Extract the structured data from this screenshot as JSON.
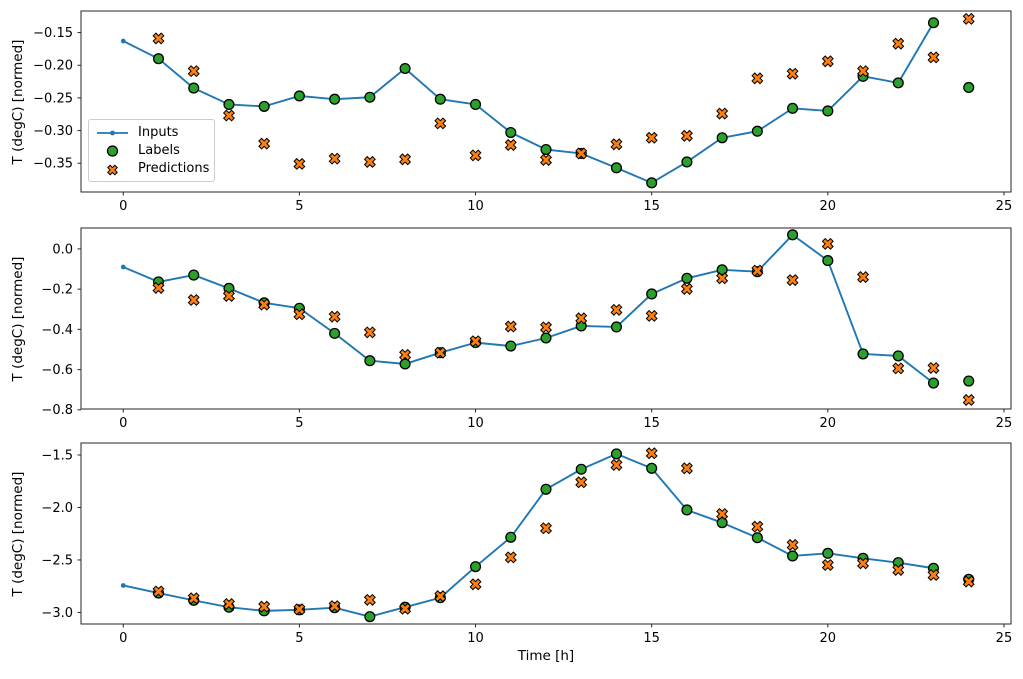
{
  "figure": {
    "xlabel": "Time [h]",
    "ylabel": "T (degC) [normed]",
    "colors": {
      "inputs_line": "#1f77b4",
      "labels_marker": "#2ca02c",
      "predictions_marker": "#ff7f0e",
      "marker_edge": "#000000",
      "axis": "#262626",
      "legend_border": "#cccccc"
    },
    "legend": {
      "items": [
        {
          "label": "Inputs",
          "marker": "line-with-dot"
        },
        {
          "label": "Labels",
          "marker": "circle"
        },
        {
          "label": "Predictions",
          "marker": "X"
        }
      ]
    }
  },
  "chart_data": [
    {
      "type": "line",
      "title": "",
      "xlabel": "",
      "ylabel": "T (degC) [normed]",
      "xlim": [
        -1.2,
        25.2
      ],
      "ylim": [
        -0.394,
        -0.117
      ],
      "xticks": [
        0,
        5,
        10,
        15,
        20,
        25
      ],
      "xtick_labels": [
        "0",
        "5",
        "10",
        "15",
        "20",
        "25"
      ],
      "yticks": [
        -0.15,
        -0.2,
        -0.25,
        -0.3,
        -0.35
      ],
      "ytick_labels": [
        "−0.15",
        "−0.20",
        "−0.25",
        "−0.30",
        "−0.35"
      ],
      "legend_visible": true,
      "series": [
        {
          "name": "Inputs",
          "type": "line",
          "marker": "point",
          "x": [
            0,
            1,
            2,
            3,
            4,
            5,
            6,
            7,
            8,
            9,
            10,
            11,
            12,
            13,
            14,
            15,
            16,
            17,
            18,
            19,
            20,
            21,
            22,
            23
          ],
          "y": [
            -0.163,
            -0.19,
            -0.235,
            -0.26,
            -0.263,
            -0.247,
            -0.252,
            -0.249,
            -0.205,
            -0.252,
            -0.26,
            -0.303,
            -0.329,
            -0.335,
            -0.357,
            -0.38,
            -0.348,
            -0.311,
            -0.301,
            -0.266,
            -0.27,
            -0.217,
            -0.227,
            -0.135
          ]
        },
        {
          "name": "Labels",
          "type": "scatter",
          "marker": "circle",
          "x": [
            1,
            2,
            3,
            4,
            5,
            6,
            7,
            8,
            9,
            10,
            11,
            12,
            13,
            14,
            15,
            16,
            17,
            18,
            19,
            20,
            21,
            22,
            23,
            24
          ],
          "y": [
            -0.19,
            -0.235,
            -0.26,
            -0.263,
            -0.247,
            -0.252,
            -0.249,
            -0.205,
            -0.252,
            -0.26,
            -0.303,
            -0.329,
            -0.335,
            -0.357,
            -0.38,
            -0.348,
            -0.311,
            -0.301,
            -0.266,
            -0.27,
            -0.217,
            -0.227,
            -0.135,
            -0.234
          ]
        },
        {
          "name": "Predictions",
          "type": "scatter",
          "marker": "X",
          "x": [
            1,
            2,
            3,
            4,
            5,
            6,
            7,
            8,
            9,
            10,
            11,
            12,
            13,
            14,
            15,
            16,
            17,
            18,
            19,
            20,
            21,
            22,
            23,
            24
          ],
          "y": [
            -0.159,
            -0.209,
            -0.277,
            -0.32,
            -0.351,
            -0.343,
            -0.348,
            -0.344,
            -0.289,
            -0.338,
            -0.322,
            -0.345,
            -0.335,
            -0.321,
            -0.311,
            -0.308,
            -0.274,
            -0.22,
            -0.213,
            -0.194,
            -0.209,
            -0.167,
            -0.188,
            -0.129
          ]
        }
      ]
    },
    {
      "type": "line",
      "title": "",
      "xlabel": "",
      "ylabel": "T (degC) [normed]",
      "xlim": [
        -1.2,
        25.2
      ],
      "ylim": [
        -0.796,
        0.104
      ],
      "xticks": [
        0,
        5,
        10,
        15,
        20,
        25
      ],
      "xtick_labels": [
        "0",
        "5",
        "10",
        "15",
        "20",
        "25"
      ],
      "yticks": [
        0.0,
        -0.2,
        -0.4,
        -0.6,
        -0.8
      ],
      "ytick_labels": [
        "0.0",
        "−0.2",
        "−0.4",
        "−0.6",
        "−0.8"
      ],
      "legend_visible": false,
      "series": [
        {
          "name": "Inputs",
          "type": "line",
          "marker": "point",
          "x": [
            0,
            1,
            2,
            3,
            4,
            5,
            6,
            7,
            8,
            9,
            10,
            11,
            12,
            13,
            14,
            15,
            16,
            17,
            18,
            19,
            20,
            21,
            22,
            23
          ],
          "y": [
            -0.09,
            -0.164,
            -0.13,
            -0.196,
            -0.268,
            -0.295,
            -0.42,
            -0.556,
            -0.572,
            -0.516,
            -0.466,
            -0.483,
            -0.443,
            -0.383,
            -0.388,
            -0.224,
            -0.146,
            -0.104,
            -0.113,
            0.07,
            -0.058,
            -0.522,
            -0.532,
            -0.667
          ]
        },
        {
          "name": "Labels",
          "type": "scatter",
          "marker": "circle",
          "x": [
            1,
            2,
            3,
            4,
            5,
            6,
            7,
            8,
            9,
            10,
            11,
            12,
            13,
            14,
            15,
            16,
            17,
            18,
            19,
            20,
            21,
            22,
            23,
            24
          ],
          "y": [
            -0.164,
            -0.13,
            -0.196,
            -0.268,
            -0.295,
            -0.42,
            -0.556,
            -0.572,
            -0.516,
            -0.466,
            -0.483,
            -0.443,
            -0.383,
            -0.388,
            -0.224,
            -0.146,
            -0.104,
            -0.113,
            0.07,
            -0.058,
            -0.522,
            -0.532,
            -0.667,
            -0.657
          ]
        },
        {
          "name": "Predictions",
          "type": "scatter",
          "marker": "X",
          "x": [
            1,
            2,
            3,
            4,
            5,
            6,
            7,
            8,
            9,
            10,
            11,
            12,
            13,
            14,
            15,
            16,
            17,
            18,
            19,
            20,
            21,
            22,
            23,
            24
          ],
          "y": [
            -0.194,
            -0.254,
            -0.234,
            -0.277,
            -0.325,
            -0.337,
            -0.415,
            -0.527,
            -0.516,
            -0.459,
            -0.386,
            -0.39,
            -0.345,
            -0.303,
            -0.333,
            -0.199,
            -0.146,
            -0.108,
            -0.155,
            0.025,
            -0.14,
            -0.594,
            -0.592,
            -0.751
          ]
        }
      ]
    },
    {
      "type": "line",
      "title": "",
      "xlabel": "Time [h]",
      "ylabel": "T (degC) [normed]",
      "xlim": [
        -1.2,
        25.2
      ],
      "ylim": [
        -3.11,
        -1.386
      ],
      "xticks": [
        0,
        5,
        10,
        15,
        20,
        25
      ],
      "xtick_labels": [
        "0",
        "5",
        "10",
        "15",
        "20",
        "25"
      ],
      "yticks": [
        -1.5,
        -2.0,
        -2.5,
        -3.0
      ],
      "ytick_labels": [
        "−1.5",
        "−2.0",
        "−2.5",
        "−3.0"
      ],
      "legend_visible": false,
      "series": [
        {
          "name": "Inputs",
          "type": "line",
          "marker": "point",
          "x": [
            0,
            1,
            2,
            3,
            4,
            5,
            6,
            7,
            8,
            9,
            10,
            11,
            12,
            13,
            14,
            15,
            16,
            17,
            18,
            19,
            20,
            21,
            22,
            23
          ],
          "y": [
            -2.743,
            -2.815,
            -2.885,
            -2.95,
            -2.985,
            -2.975,
            -2.955,
            -3.04,
            -2.95,
            -2.86,
            -2.564,
            -2.284,
            -1.827,
            -1.636,
            -1.49,
            -1.627,
            -2.024,
            -2.145,
            -2.288,
            -2.462,
            -2.437,
            -2.484,
            -2.526,
            -2.579
          ]
        },
        {
          "name": "Labels",
          "type": "scatter",
          "marker": "circle",
          "x": [
            1,
            2,
            3,
            4,
            5,
            6,
            7,
            8,
            9,
            10,
            11,
            12,
            13,
            14,
            15,
            16,
            17,
            18,
            19,
            20,
            21,
            22,
            23,
            24
          ],
          "y": [
            -2.815,
            -2.885,
            -2.95,
            -2.985,
            -2.975,
            -2.955,
            -3.04,
            -2.95,
            -2.86,
            -2.564,
            -2.284,
            -1.827,
            -1.636,
            -1.49,
            -1.627,
            -2.024,
            -2.145,
            -2.288,
            -2.462,
            -2.437,
            -2.484,
            -2.526,
            -2.579,
            -2.684
          ]
        },
        {
          "name": "Predictions",
          "type": "scatter",
          "marker": "X",
          "x": [
            1,
            2,
            3,
            4,
            5,
            6,
            7,
            8,
            9,
            10,
            11,
            12,
            13,
            14,
            15,
            16,
            17,
            18,
            19,
            20,
            21,
            22,
            23,
            24
          ],
          "y": [
            -2.8,
            -2.865,
            -2.92,
            -2.945,
            -2.97,
            -2.94,
            -2.88,
            -2.965,
            -2.845,
            -2.732,
            -2.475,
            -2.198,
            -1.76,
            -1.595,
            -1.484,
            -1.627,
            -2.062,
            -2.183,
            -2.357,
            -2.548,
            -2.532,
            -2.595,
            -2.643,
            -2.706
          ]
        }
      ]
    }
  ]
}
